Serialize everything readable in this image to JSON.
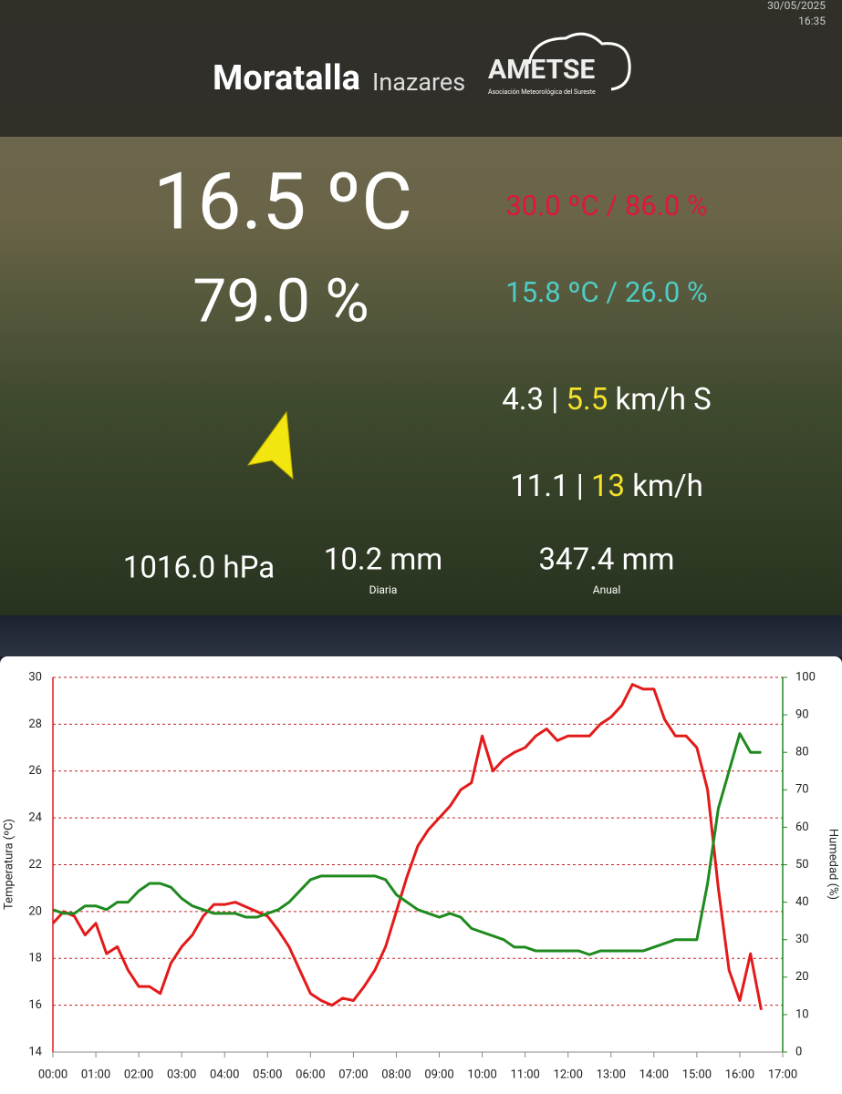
{
  "header": {
    "date": "30/05/2025",
    "time": "16:35",
    "station": "Moratalla",
    "place": "Inazares",
    "logo": "AMETSE",
    "logo_sub": "Asociación Meteorológica del Sureste"
  },
  "readings": {
    "temperature": "16.5 ºC",
    "humidity": "79.0 %",
    "max": "30.0 ºC / 86.0 %",
    "min": "15.8 ºC / 26.0 %",
    "wind": {
      "avg": "4.3 |",
      "gust": "5.5",
      "unit": "km/h S"
    },
    "wind_max": {
      "avg": "11.1 |",
      "gust": "13",
      "unit": "km/h"
    },
    "pressure": "1016.0 hPa",
    "rain_day": "10.2 mm",
    "rain_day_label": "Diaria",
    "rain_year": "347.4 mm",
    "rain_year_label": "Anual"
  },
  "chart_data": {
    "type": "line",
    "ylabel": "Temperatura (ºC)",
    "y2label": "Humedad (%)",
    "x": [
      0,
      0.25,
      0.5,
      0.75,
      1,
      1.25,
      1.5,
      1.75,
      2,
      2.25,
      2.5,
      2.75,
      3,
      3.25,
      3.5,
      3.75,
      4,
      4.25,
      4.5,
      4.75,
      5,
      5.25,
      5.5,
      5.75,
      6,
      6.25,
      6.5,
      6.75,
      7,
      7.25,
      7.5,
      7.75,
      8,
      8.25,
      8.5,
      8.75,
      9,
      9.25,
      9.5,
      9.75,
      10,
      10.25,
      10.5,
      10.75,
      11,
      11.25,
      11.5,
      11.75,
      12,
      12.25,
      12.5,
      12.75,
      13,
      13.25,
      13.5,
      13.75,
      14,
      14.25,
      14.5,
      14.75,
      15,
      15.25,
      15.5,
      15.75,
      16,
      16.25,
      16.5
    ],
    "series": [
      {
        "color": "#e31a1a",
        "values": [
          19.5,
          20.0,
          19.8,
          19.0,
          19.5,
          18.2,
          18.5,
          17.5,
          16.8,
          16.8,
          16.5,
          17.8,
          18.5,
          19.0,
          19.8,
          20.3,
          20.3,
          20.4,
          20.2,
          20.0,
          19.8,
          19.2,
          18.5,
          17.5,
          16.5,
          16.2,
          16.0,
          16.3,
          16.2,
          16.8,
          17.5,
          18.5,
          20.0,
          21.5,
          22.8,
          23.5,
          24.0,
          24.5,
          25.2,
          25.5,
          27.5,
          26.0,
          26.5,
          26.8,
          27.0,
          27.5,
          27.8,
          27.3,
          27.5,
          27.5,
          27.5,
          28.0,
          28.3,
          28.8,
          29.7,
          29.5,
          29.5,
          28.2,
          27.5,
          27.5,
          27.0,
          25.2,
          21.0,
          17.5,
          16.2,
          18.2,
          15.8
        ]
      },
      {
        "color": "#1f8a1f",
        "axis": "y2",
        "values": [
          38,
          37,
          37,
          39,
          39,
          38,
          40,
          40,
          43,
          45,
          45,
          44,
          41,
          39,
          38,
          37,
          37,
          37,
          36,
          36,
          37,
          38,
          40,
          43,
          46,
          47,
          47,
          47,
          47,
          47,
          47,
          46,
          42,
          40,
          38,
          37,
          36,
          37,
          36,
          33,
          32,
          31,
          30,
          28,
          28,
          27,
          27,
          27,
          27,
          27,
          26,
          27,
          27,
          27,
          27,
          27,
          28,
          29,
          30,
          30,
          30,
          45,
          65,
          75,
          85,
          80,
          80
        ]
      }
    ],
    "xlim": [
      0,
      17
    ],
    "xticks": [
      {
        "value": 0,
        "label": "00:00"
      },
      {
        "value": 1,
        "label": "01:00"
      },
      {
        "value": 2,
        "label": "02:00"
      },
      {
        "value": 3,
        "label": "03:00"
      },
      {
        "value": 4,
        "label": "04:00"
      },
      {
        "value": 5,
        "label": "05:00"
      },
      {
        "value": 6,
        "label": "06:00"
      },
      {
        "value": 7,
        "label": "07:00"
      },
      {
        "value": 8,
        "label": "08:00"
      },
      {
        "value": 9,
        "label": "09:00"
      },
      {
        "value": 10,
        "label": "10:00"
      },
      {
        "value": 11,
        "label": "11:00"
      },
      {
        "value": 12,
        "label": "12:00"
      },
      {
        "value": 13,
        "label": "13:00"
      },
      {
        "value": 14,
        "label": "14:00"
      },
      {
        "value": 15,
        "label": "15:00"
      },
      {
        "value": 16,
        "label": "16:00"
      },
      {
        "value": 17,
        "label": "17:00"
      }
    ],
    "ylim": [
      14,
      30
    ],
    "yticks": [
      14,
      16,
      18,
      20,
      22,
      24,
      26,
      28,
      30
    ],
    "y2lim": [
      0,
      100
    ],
    "y2ticks": [
      0,
      10,
      20,
      30,
      40,
      50,
      60,
      70,
      80,
      90,
      100
    ],
    "grid": true,
    "grid_color": "#c62020"
  }
}
